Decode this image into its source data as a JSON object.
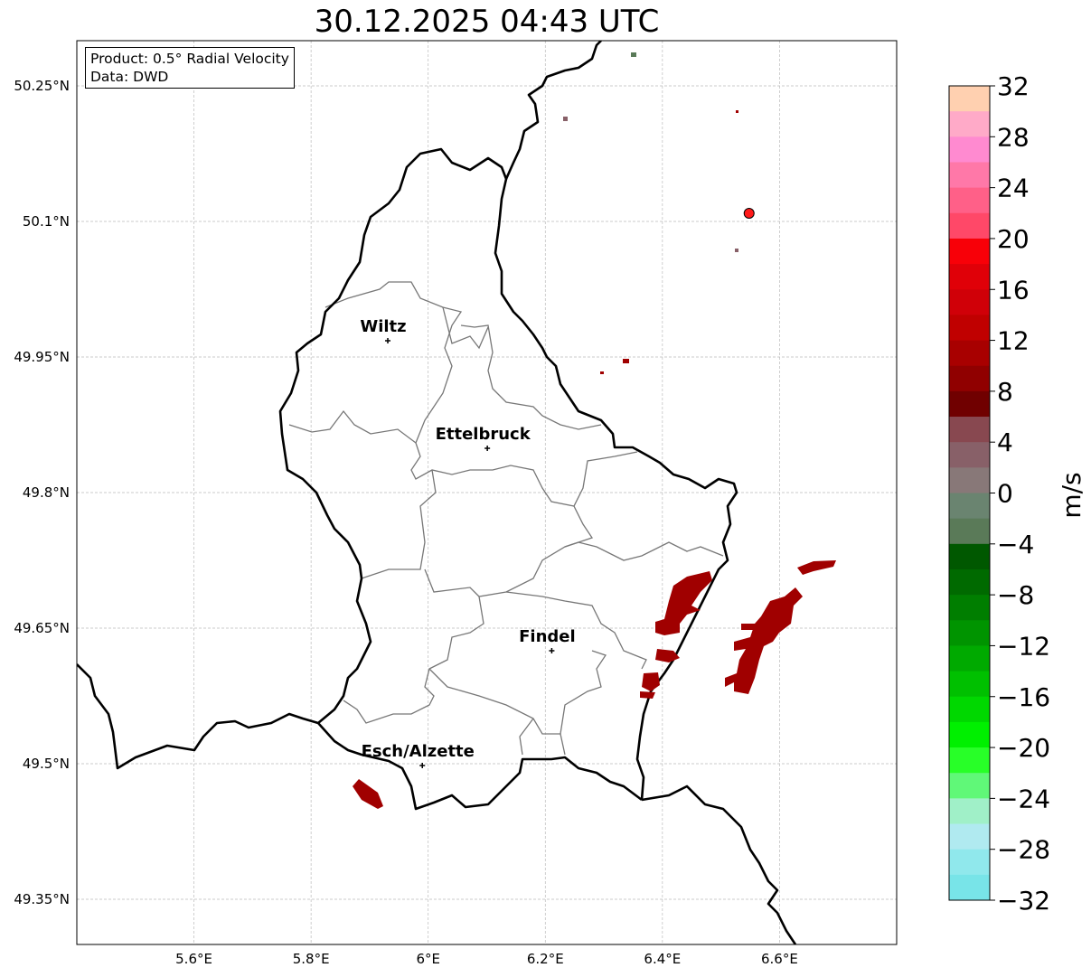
{
  "title": "30.12.2025 04:43 UTC",
  "info": {
    "product": "Product: 0.5° Radial Velocity",
    "data": "Data: DWD"
  },
  "map": {
    "extent": {
      "lon": [
        5.4,
        6.8
      ],
      "lat": [
        49.3,
        50.3
      ]
    },
    "lon_ticks": [
      {
        "v": 5.6,
        "label": "5.6°E"
      },
      {
        "v": 5.8,
        "label": "5.8°E"
      },
      {
        "v": 6.0,
        "label": "6°E"
      },
      {
        "v": 6.2,
        "label": "6.2°E"
      },
      {
        "v": 6.4,
        "label": "6.4°E"
      },
      {
        "v": 6.6,
        "label": "6.6°E"
      }
    ],
    "lat_ticks": [
      {
        "v": 50.25,
        "label": "50.25°N"
      },
      {
        "v": 50.1,
        "label": "50.1°N"
      },
      {
        "v": 49.95,
        "label": "49.95°N"
      },
      {
        "v": 49.8,
        "label": "49.8°N"
      },
      {
        "v": 49.65,
        "label": "49.65°N"
      },
      {
        "v": 49.5,
        "label": "49.5°N"
      },
      {
        "v": 49.35,
        "label": "49.35°N"
      }
    ],
    "cities": [
      {
        "name": "Wiltz",
        "lon": 5.931,
        "lat": 49.968
      },
      {
        "name": "Ettelbruck",
        "lon": 6.101,
        "lat": 49.849
      },
      {
        "name": "Findel",
        "lon": 6.211,
        "lat": 49.625
      },
      {
        "name": "Esch/Alzette",
        "lon": 5.99,
        "lat": 49.498
      }
    ],
    "radar_site": {
      "lon": 6.548,
      "lat": 50.109,
      "color": "#ff1a1a"
    },
    "echo_color": "#a00000"
  },
  "colorbar": {
    "label": "m/s",
    "min": -32,
    "max": 32,
    "ticks": [
      {
        "v": 32,
        "label": "32"
      },
      {
        "v": 28,
        "label": "28"
      },
      {
        "v": 24,
        "label": "24"
      },
      {
        "v": 20,
        "label": "20"
      },
      {
        "v": 16,
        "label": "16"
      },
      {
        "v": 12,
        "label": "12"
      },
      {
        "v": 8,
        "label": "8"
      },
      {
        "v": 4,
        "label": "4"
      },
      {
        "v": 0,
        "label": "0"
      },
      {
        "v": -4,
        "label": "−4"
      },
      {
        "v": -8,
        "label": "−8"
      },
      {
        "v": -12,
        "label": "−12"
      },
      {
        "v": -16,
        "label": "−16"
      },
      {
        "v": -20,
        "label": "−20"
      },
      {
        "v": -24,
        "label": "−24"
      },
      {
        "v": -28,
        "label": "−28"
      },
      {
        "v": -32,
        "label": "−32"
      }
    ],
    "colors_top_to_bottom": [
      "#ffd0b0",
      "#ffaac8",
      "#ff8ad0",
      "#ff78a8",
      "#ff6088",
      "#ff4868",
      "#f80008",
      "#e00008",
      "#d00008",
      "#c00000",
      "#a80000",
      "#900000",
      "#700000",
      "#884850",
      "#886068",
      "#887878",
      "#6a8470",
      "#5a7a58",
      "#005800",
      "#006a00",
      "#007e00",
      "#009400",
      "#00aa00",
      "#00c000",
      "#00d800",
      "#00f000",
      "#28ff28",
      "#60f878",
      "#a0f0c8",
      "#b0eaf0",
      "#90e8ec",
      "#78e4e8"
    ]
  }
}
